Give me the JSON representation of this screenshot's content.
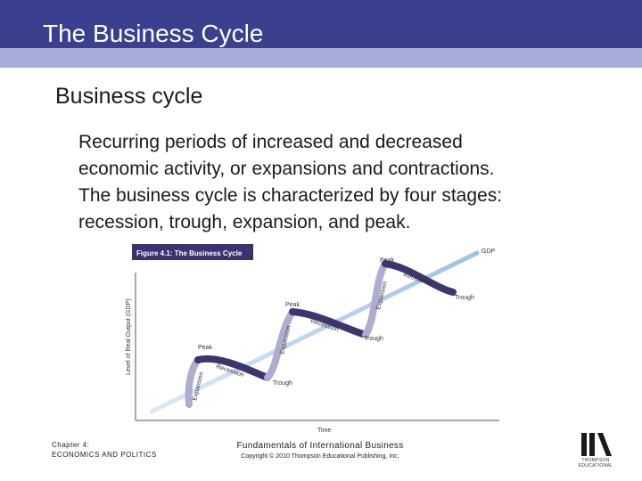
{
  "slide": {
    "title": "The Business Cycle",
    "heading": "Business cycle",
    "body_lines": [
      "Recurring periods of increased and decreased",
      "economic activity, or expansions and contractions.",
      "The business cycle is characterized by four stages:",
      "recession, trough, expansion, and peak."
    ]
  },
  "figure": {
    "caption": "Figure 4.1: The Business Cycle",
    "y_axis_label": "Level of Real Output (GDP)",
    "x_axis_label": "Time",
    "trend_label": "GDP",
    "labels": {
      "peak_1": "Peak",
      "peak_2": "Peak",
      "peak_3": "Peak",
      "recession_1": "Recession",
      "recession_2": "Recession",
      "recession_3": "Recession",
      "trough_1": "Trough",
      "trough_2": "Trough",
      "trough_3": "Trough",
      "expansion_1": "Expansion",
      "expansion_2": "Expansion",
      "expansion_3": "Expansion"
    }
  },
  "footer": {
    "chapter_line1": "Chapter 4:",
    "chapter_line2": "ECONOMICS AND POLITICS",
    "book_title": "Fundamentals of International Business",
    "copyright": "Copyright © 2010 Thompson Educational Publishing, Inc.",
    "logo_text_line1": "THOMPSON",
    "logo_text_line2": "EDUCATIONAL"
  },
  "colors": {
    "title_bar": "#3a3f8f",
    "title_stripe": "#a8acd8",
    "caption_bg": "#3b3270",
    "wave_dark": "#3d3570",
    "wave_light": "#b0acd0",
    "trend_line": "#a8c8e8"
  }
}
